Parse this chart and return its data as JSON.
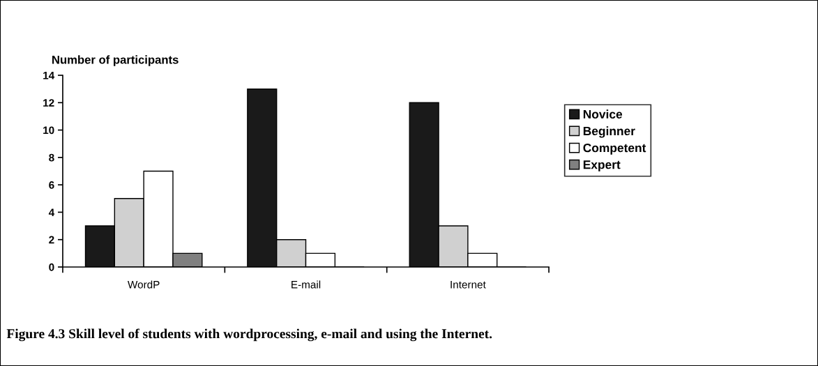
{
  "chart_data": {
    "type": "bar",
    "categories": [
      "WordP",
      "E-mail",
      "Internet"
    ],
    "series": [
      {
        "name": "Novice",
        "color": "#1a1a1a",
        "values": [
          3,
          13,
          12
        ]
      },
      {
        "name": "Beginner",
        "color": "#d0d0d0",
        "values": [
          5,
          2,
          3
        ]
      },
      {
        "name": "Competent",
        "color": "#ffffff",
        "values": [
          7,
          1,
          1
        ]
      },
      {
        "name": "Expert",
        "color": "#808080",
        "values": [
          1,
          0,
          0
        ]
      }
    ],
    "ylabel": "Number of participants",
    "ylim": [
      0,
      14
    ],
    "yticks": [
      0,
      2,
      4,
      6,
      8,
      10,
      12,
      14
    ],
    "grid": false,
    "legend": "right",
    "annotations": [
      "Figure 4.3 Skill level of students with wordprocessing, e-mail and using the Internet."
    ]
  }
}
